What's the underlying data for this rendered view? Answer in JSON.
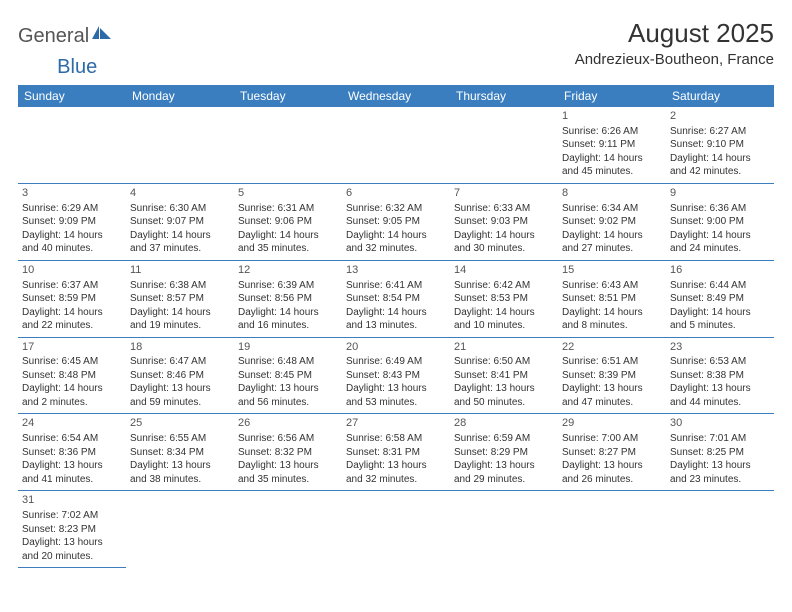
{
  "logo": {
    "general": "General",
    "blue": "Blue"
  },
  "header": {
    "title": "August 2025",
    "location": "Andrezieux-Boutheon, France"
  },
  "colors": {
    "header_bg": "#3a7ebf",
    "header_fg": "#ffffff",
    "border": "#3a7ebf",
    "text": "#333333",
    "logo_gray": "#555555",
    "logo_blue": "#2d6aa8"
  },
  "fonts": {
    "title_size_pt": 20,
    "location_size_pt": 11,
    "dayhead_size_pt": 9,
    "cell_size_pt": 7.5
  },
  "weekdays": [
    "Sunday",
    "Monday",
    "Tuesday",
    "Wednesday",
    "Thursday",
    "Friday",
    "Saturday"
  ],
  "weeks": [
    [
      null,
      null,
      null,
      null,
      null,
      {
        "n": "1",
        "sunrise": "Sunrise: 6:26 AM",
        "sunset": "Sunset: 9:11 PM",
        "daylight": "Daylight: 14 hours and 45 minutes."
      },
      {
        "n": "2",
        "sunrise": "Sunrise: 6:27 AM",
        "sunset": "Sunset: 9:10 PM",
        "daylight": "Daylight: 14 hours and 42 minutes."
      }
    ],
    [
      {
        "n": "3",
        "sunrise": "Sunrise: 6:29 AM",
        "sunset": "Sunset: 9:09 PM",
        "daylight": "Daylight: 14 hours and 40 minutes."
      },
      {
        "n": "4",
        "sunrise": "Sunrise: 6:30 AM",
        "sunset": "Sunset: 9:07 PM",
        "daylight": "Daylight: 14 hours and 37 minutes."
      },
      {
        "n": "5",
        "sunrise": "Sunrise: 6:31 AM",
        "sunset": "Sunset: 9:06 PM",
        "daylight": "Daylight: 14 hours and 35 minutes."
      },
      {
        "n": "6",
        "sunrise": "Sunrise: 6:32 AM",
        "sunset": "Sunset: 9:05 PM",
        "daylight": "Daylight: 14 hours and 32 minutes."
      },
      {
        "n": "7",
        "sunrise": "Sunrise: 6:33 AM",
        "sunset": "Sunset: 9:03 PM",
        "daylight": "Daylight: 14 hours and 30 minutes."
      },
      {
        "n": "8",
        "sunrise": "Sunrise: 6:34 AM",
        "sunset": "Sunset: 9:02 PM",
        "daylight": "Daylight: 14 hours and 27 minutes."
      },
      {
        "n": "9",
        "sunrise": "Sunrise: 6:36 AM",
        "sunset": "Sunset: 9:00 PM",
        "daylight": "Daylight: 14 hours and 24 minutes."
      }
    ],
    [
      {
        "n": "10",
        "sunrise": "Sunrise: 6:37 AM",
        "sunset": "Sunset: 8:59 PM",
        "daylight": "Daylight: 14 hours and 22 minutes."
      },
      {
        "n": "11",
        "sunrise": "Sunrise: 6:38 AM",
        "sunset": "Sunset: 8:57 PM",
        "daylight": "Daylight: 14 hours and 19 minutes."
      },
      {
        "n": "12",
        "sunrise": "Sunrise: 6:39 AM",
        "sunset": "Sunset: 8:56 PM",
        "daylight": "Daylight: 14 hours and 16 minutes."
      },
      {
        "n": "13",
        "sunrise": "Sunrise: 6:41 AM",
        "sunset": "Sunset: 8:54 PM",
        "daylight": "Daylight: 14 hours and 13 minutes."
      },
      {
        "n": "14",
        "sunrise": "Sunrise: 6:42 AM",
        "sunset": "Sunset: 8:53 PM",
        "daylight": "Daylight: 14 hours and 10 minutes."
      },
      {
        "n": "15",
        "sunrise": "Sunrise: 6:43 AM",
        "sunset": "Sunset: 8:51 PM",
        "daylight": "Daylight: 14 hours and 8 minutes."
      },
      {
        "n": "16",
        "sunrise": "Sunrise: 6:44 AM",
        "sunset": "Sunset: 8:49 PM",
        "daylight": "Daylight: 14 hours and 5 minutes."
      }
    ],
    [
      {
        "n": "17",
        "sunrise": "Sunrise: 6:45 AM",
        "sunset": "Sunset: 8:48 PM",
        "daylight": "Daylight: 14 hours and 2 minutes."
      },
      {
        "n": "18",
        "sunrise": "Sunrise: 6:47 AM",
        "sunset": "Sunset: 8:46 PM",
        "daylight": "Daylight: 13 hours and 59 minutes."
      },
      {
        "n": "19",
        "sunrise": "Sunrise: 6:48 AM",
        "sunset": "Sunset: 8:45 PM",
        "daylight": "Daylight: 13 hours and 56 minutes."
      },
      {
        "n": "20",
        "sunrise": "Sunrise: 6:49 AM",
        "sunset": "Sunset: 8:43 PM",
        "daylight": "Daylight: 13 hours and 53 minutes."
      },
      {
        "n": "21",
        "sunrise": "Sunrise: 6:50 AM",
        "sunset": "Sunset: 8:41 PM",
        "daylight": "Daylight: 13 hours and 50 minutes."
      },
      {
        "n": "22",
        "sunrise": "Sunrise: 6:51 AM",
        "sunset": "Sunset: 8:39 PM",
        "daylight": "Daylight: 13 hours and 47 minutes."
      },
      {
        "n": "23",
        "sunrise": "Sunrise: 6:53 AM",
        "sunset": "Sunset: 8:38 PM",
        "daylight": "Daylight: 13 hours and 44 minutes."
      }
    ],
    [
      {
        "n": "24",
        "sunrise": "Sunrise: 6:54 AM",
        "sunset": "Sunset: 8:36 PM",
        "daylight": "Daylight: 13 hours and 41 minutes."
      },
      {
        "n": "25",
        "sunrise": "Sunrise: 6:55 AM",
        "sunset": "Sunset: 8:34 PM",
        "daylight": "Daylight: 13 hours and 38 minutes."
      },
      {
        "n": "26",
        "sunrise": "Sunrise: 6:56 AM",
        "sunset": "Sunset: 8:32 PM",
        "daylight": "Daylight: 13 hours and 35 minutes."
      },
      {
        "n": "27",
        "sunrise": "Sunrise: 6:58 AM",
        "sunset": "Sunset: 8:31 PM",
        "daylight": "Daylight: 13 hours and 32 minutes."
      },
      {
        "n": "28",
        "sunrise": "Sunrise: 6:59 AM",
        "sunset": "Sunset: 8:29 PM",
        "daylight": "Daylight: 13 hours and 29 minutes."
      },
      {
        "n": "29",
        "sunrise": "Sunrise: 7:00 AM",
        "sunset": "Sunset: 8:27 PM",
        "daylight": "Daylight: 13 hours and 26 minutes."
      },
      {
        "n": "30",
        "sunrise": "Sunrise: 7:01 AM",
        "sunset": "Sunset: 8:25 PM",
        "daylight": "Daylight: 13 hours and 23 minutes."
      }
    ],
    [
      {
        "n": "31",
        "sunrise": "Sunrise: 7:02 AM",
        "sunset": "Sunset: 8:23 PM",
        "daylight": "Daylight: 13 hours and 20 minutes."
      },
      null,
      null,
      null,
      null,
      null,
      null
    ]
  ]
}
